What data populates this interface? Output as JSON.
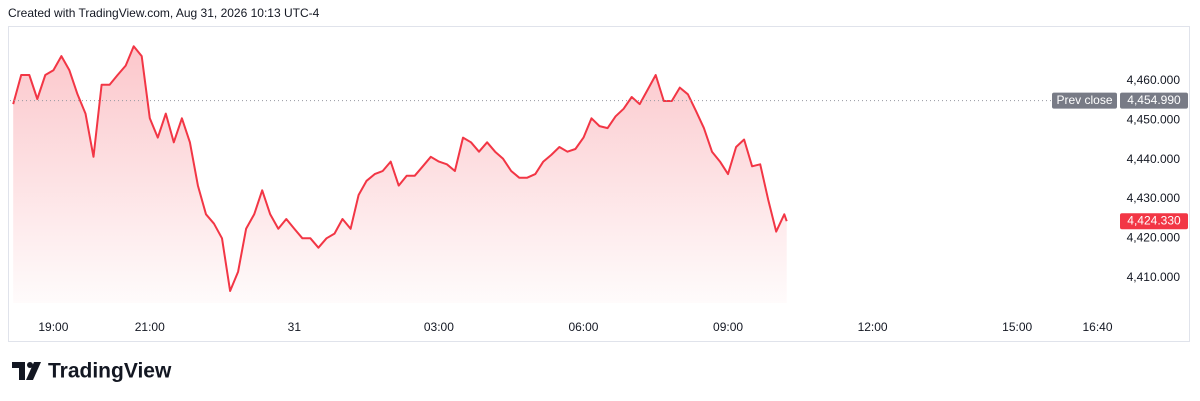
{
  "header": "Created with TradingView.com, Aug 31, 2026 10:13 UTC-4",
  "brand": "TradingView",
  "chart_data": {
    "type": "line",
    "x": [
      18.167,
      18.333,
      18.5,
      18.667,
      18.833,
      19,
      19.167,
      19.333,
      19.5,
      19.667,
      19.833,
      20,
      20.167,
      20.333,
      20.5,
      20.667,
      20.833,
      21,
      21.167,
      21.333,
      21.5,
      21.667,
      21.833,
      22,
      22.167,
      22.333,
      22.5,
      22.667,
      22.833,
      23,
      23.167,
      23.333,
      23.5,
      23.667,
      23.833,
      24,
      24.167,
      24.333,
      24.5,
      24.667,
      24.833,
      25,
      25.167,
      25.333,
      25.5,
      25.667,
      25.833,
      26,
      26.167,
      26.333,
      26.5,
      26.667,
      26.833,
      27,
      27.167,
      27.333,
      27.5,
      27.667,
      27.833,
      28,
      28.167,
      28.333,
      28.5,
      28.667,
      28.833,
      29,
      29.167,
      29.333,
      29.5,
      29.667,
      29.833,
      30,
      30.167,
      30.333,
      30.5,
      30.667,
      30.833,
      31,
      31.167,
      31.333,
      31.5,
      31.667,
      31.833,
      32,
      32.167,
      32.333,
      32.5,
      32.667,
      32.833,
      33,
      33.167,
      33.333,
      33.5,
      33.667,
      33.833,
      34,
      34.167,
      34.217
    ],
    "series": [
      {
        "color": "#f23645",
        "values": [
          4454.1,
          4461.5,
          4461.5,
          4455.4,
          4461.5,
          4462.7,
          4466.3,
          4462.7,
          4456.6,
          4451.7,
          4440.7,
          4459.0,
          4459.0,
          4461.5,
          4463.9,
          4468.8,
          4466.3,
          4450.5,
          4445.6,
          4451.7,
          4444.4,
          4450.5,
          4444.4,
          4433.4,
          4426.1,
          4423.7,
          4420.0,
          4406.6,
          4411.5,
          4422.4,
          4426.1,
          4432.2,
          4426.1,
          4422.4,
          4424.9,
          4422.4,
          4420.0,
          4420.0,
          4417.6,
          4420.0,
          4421.2,
          4424.9,
          4422.4,
          4431.0,
          4434.6,
          4436.3,
          4437.1,
          4439.5,
          4433.4,
          4435.9,
          4435.9,
          4438.3,
          4440.7,
          4439.5,
          4438.8,
          4437.1,
          4445.6,
          4444.4,
          4442.0,
          4444.4,
          4442.0,
          4440.2,
          4437.1,
          4435.4,
          4435.4,
          4436.3,
          4439.5,
          4441.2,
          4443.2,
          4442.0,
          4442.7,
          4445.6,
          4450.5,
          4448.5,
          4448.0,
          4451.0,
          4452.9,
          4455.9,
          4454.1,
          4457.8,
          4461.5,
          4454.9,
          4454.9,
          4458.3,
          4456.6,
          4452.4,
          4448.0,
          4442.0,
          4439.5,
          4436.3,
          4443.2,
          4445.1,
          4438.3,
          4438.8,
          4429.8,
          4421.7,
          4426.1,
          4424.33
        ]
      }
    ],
    "xlim": [
      18.1,
      41.03
    ],
    "xticks": [
      {
        "value": 19,
        "label": "19:00"
      },
      {
        "value": 21,
        "label": "21:00"
      },
      {
        "value": 24,
        "label": "31"
      },
      {
        "value": 27,
        "label": "03:00"
      },
      {
        "value": 30,
        "label": "06:00"
      },
      {
        "value": 33,
        "label": "09:00"
      },
      {
        "value": 36,
        "label": "12:00"
      },
      {
        "value": 39,
        "label": "15:00"
      },
      {
        "value": 40.667,
        "label": "16:40"
      }
    ],
    "ylim": [
      4400.5,
      4473.7
    ],
    "yticks": [
      {
        "value": 4410,
        "label": "4,410.000"
      },
      {
        "value": 4420,
        "label": "4,420.000"
      },
      {
        "value": 4430,
        "label": "4,430.000"
      },
      {
        "value": 4440,
        "label": "4,440.000"
      },
      {
        "value": 4450,
        "label": "4,450.000"
      },
      {
        "value": 4460,
        "label": "4,460.000"
      }
    ],
    "prev_close": {
      "name": "Prev close",
      "value": 4454.99,
      "label": "4,454.990"
    },
    "last_price": {
      "value": 4424.33,
      "label": "4,424.330"
    },
    "area_fill": true
  }
}
